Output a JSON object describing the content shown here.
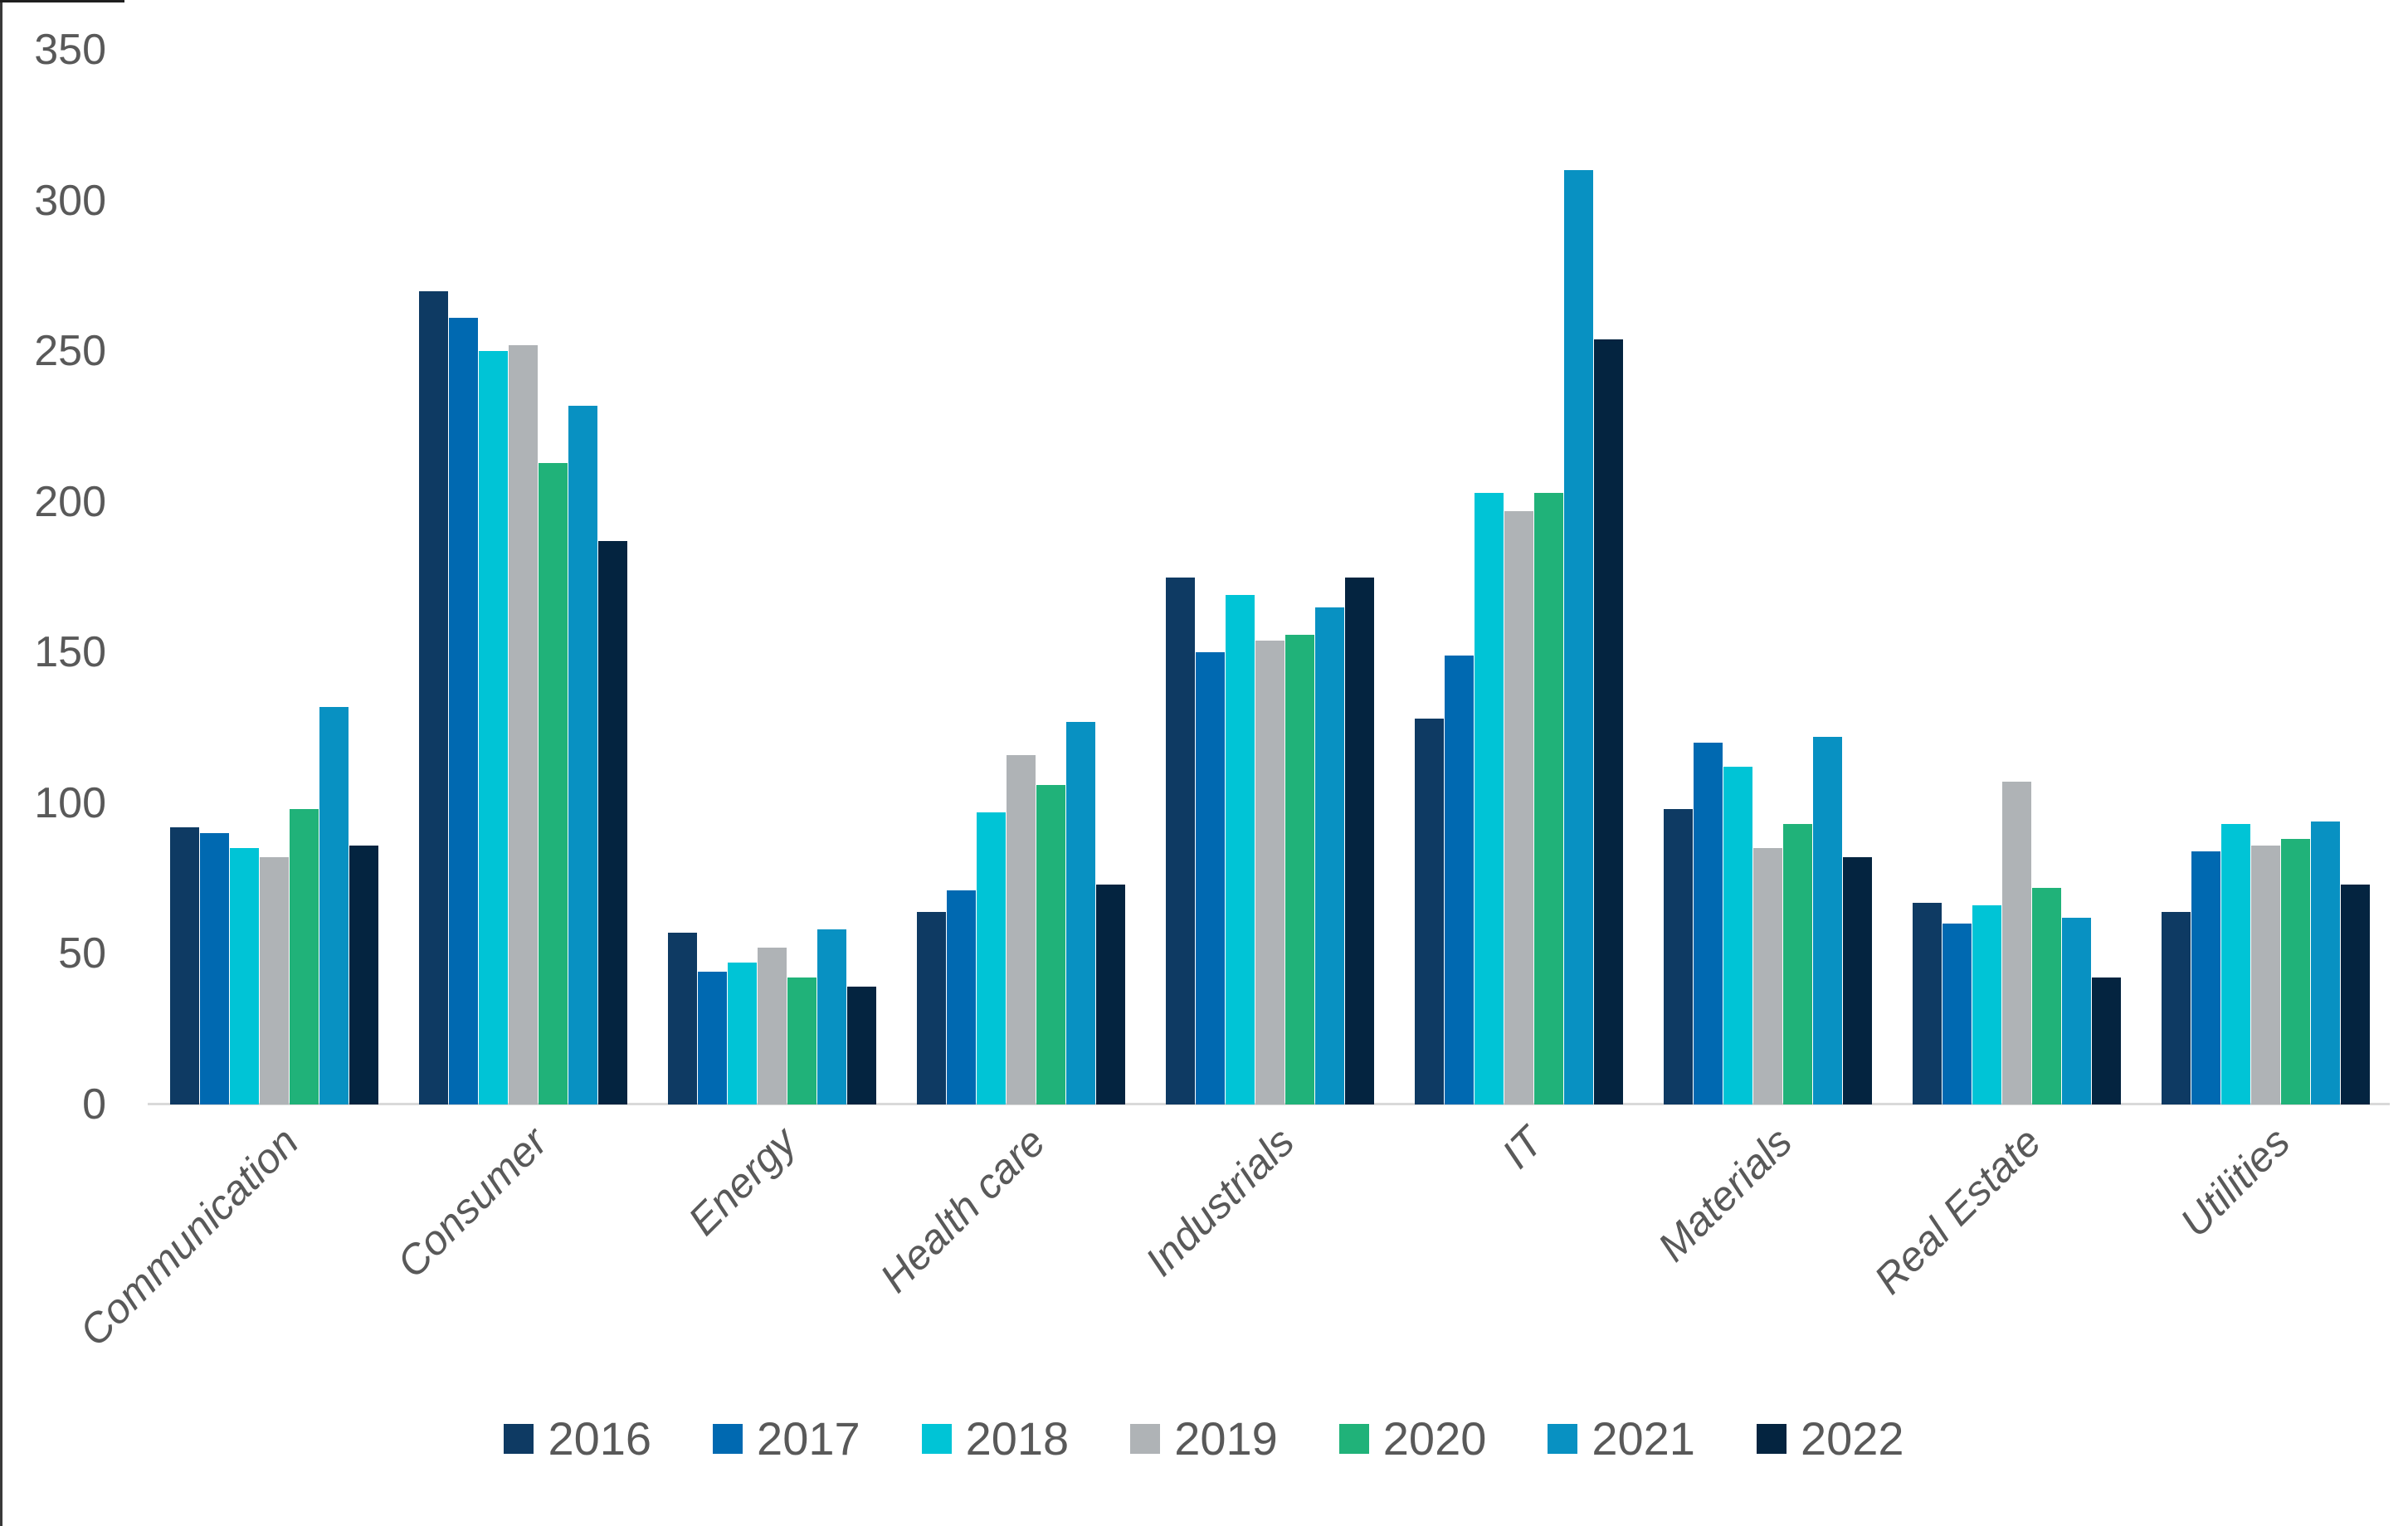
{
  "chart_data": {
    "type": "bar",
    "title": "",
    "xlabel": "",
    "ylabel": "",
    "categories": [
      "Communication",
      "Consumer",
      "Energy",
      "Health care",
      "Industrials",
      "IT",
      "Materials",
      "Real Estate",
      "Utilities"
    ],
    "series": [
      {
        "name": "2016",
        "color": "#0E3A63",
        "values": [
          92,
          270,
          57,
          64,
          175,
          128,
          98,
          67,
          64
        ]
      },
      {
        "name": "2017",
        "color": "#0069B1",
        "values": [
          90,
          261,
          44,
          71,
          150,
          149,
          120,
          60,
          84
        ]
      },
      {
        "name": "2018",
        "color": "#00C4D6",
        "values": [
          85,
          250,
          47,
          97,
          169,
          203,
          112,
          66,
          93
        ]
      },
      {
        "name": "2019",
        "color": "#AFB3B6",
        "values": [
          82,
          252,
          52,
          116,
          154,
          197,
          85,
          107,
          86
        ]
      },
      {
        "name": "2020",
        "color": "#20B279",
        "values": [
          98,
          213,
          42,
          106,
          156,
          203,
          93,
          72,
          88
        ]
      },
      {
        "name": "2021",
        "color": "#0891C2",
        "values": [
          132,
          232,
          58,
          127,
          165,
          310,
          122,
          62,
          94
        ]
      },
      {
        "name": "2022",
        "color": "#042440",
        "values": [
          86,
          187,
          39,
          73,
          175,
          254,
          82,
          42,
          73
        ]
      }
    ],
    "ylim": [
      0,
      350
    ],
    "yticks": [
      0,
      50,
      100,
      150,
      200,
      250,
      300,
      350
    ],
    "grid": false,
    "legend_position": "bottom",
    "colors": {
      "axis_text": "#595959",
      "axis_line": "#D9D9D9",
      "background": "#FFFFFF"
    }
  }
}
